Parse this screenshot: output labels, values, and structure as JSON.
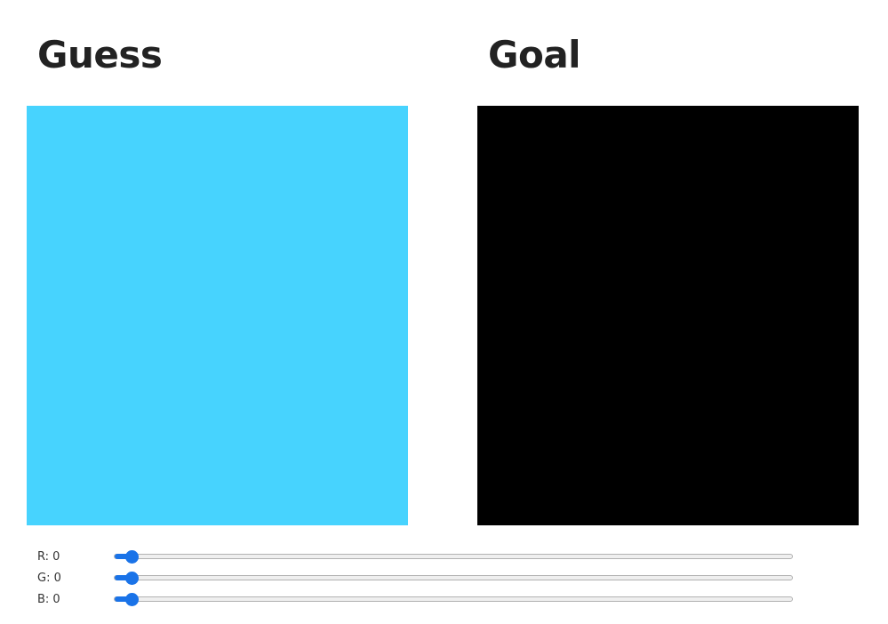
{
  "guess": {
    "title": "Guess",
    "color": "#47d3fe"
  },
  "goal": {
    "title": "Goal",
    "color": "#000000"
  },
  "sliders": [
    {
      "label": "R: 0",
      "value": 0,
      "max": 255
    },
    {
      "label": "G: 0",
      "value": 0,
      "max": 255
    },
    {
      "label": "B: 0",
      "value": 0,
      "max": 255
    }
  ],
  "colors": {
    "slider_accent": "#1a73e8",
    "title_text": "#222222"
  }
}
